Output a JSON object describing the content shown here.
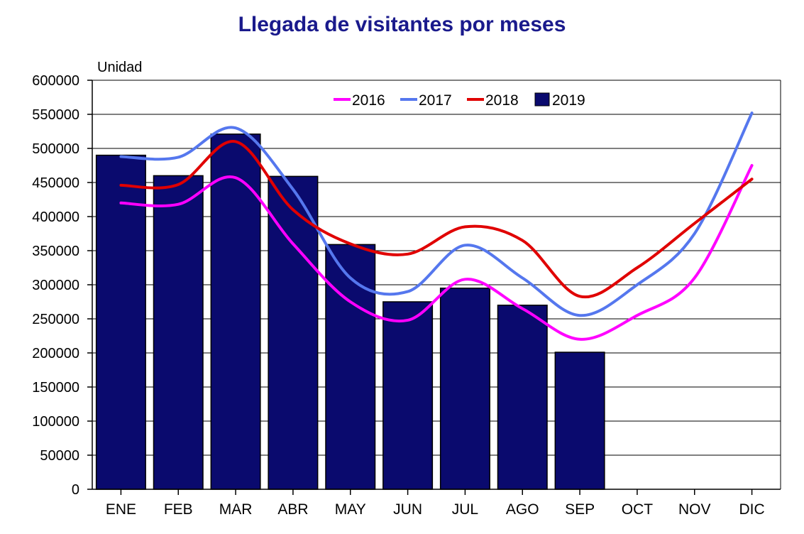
{
  "chart_data": {
    "type": "bar+line",
    "title": "Llegada de visitantes por meses",
    "ylabel": "Unidad",
    "xlabel": "",
    "ylim": [
      0,
      600000
    ],
    "yticks": [
      0,
      50000,
      100000,
      150000,
      200000,
      250000,
      300000,
      350000,
      400000,
      450000,
      500000,
      550000,
      600000
    ],
    "grid": true,
    "legend_position": "top-right",
    "categories": [
      "ENE",
      "FEB",
      "MAR",
      "ABR",
      "MAY",
      "JUN",
      "JUL",
      "AGO",
      "SEP",
      "OCT",
      "NOV",
      "DIC"
    ],
    "series": [
      {
        "name": "2016",
        "kind": "line",
        "color": "#ff00ff",
        "values": [
          420000,
          418000,
          457000,
          360000,
          275000,
          248000,
          308000,
          265000,
          220000,
          255000,
          310000,
          475000
        ]
      },
      {
        "name": "2017",
        "kind": "line",
        "color": "#5577ee",
        "values": [
          488000,
          487000,
          530000,
          440000,
          310000,
          290000,
          358000,
          310000,
          255000,
          300000,
          375000,
          552000
        ]
      },
      {
        "name": "2018",
        "kind": "line",
        "color": "#e00000",
        "values": [
          446000,
          447000,
          510000,
          410000,
          360000,
          345000,
          385000,
          365000,
          283000,
          325000,
          390000,
          455000
        ]
      },
      {
        "name": "2019",
        "kind": "bar",
        "color": "#0a0a6e",
        "values": [
          490000,
          460000,
          521000,
          459000,
          359000,
          275000,
          295000,
          270000,
          201000,
          null,
          null,
          null
        ]
      }
    ]
  }
}
